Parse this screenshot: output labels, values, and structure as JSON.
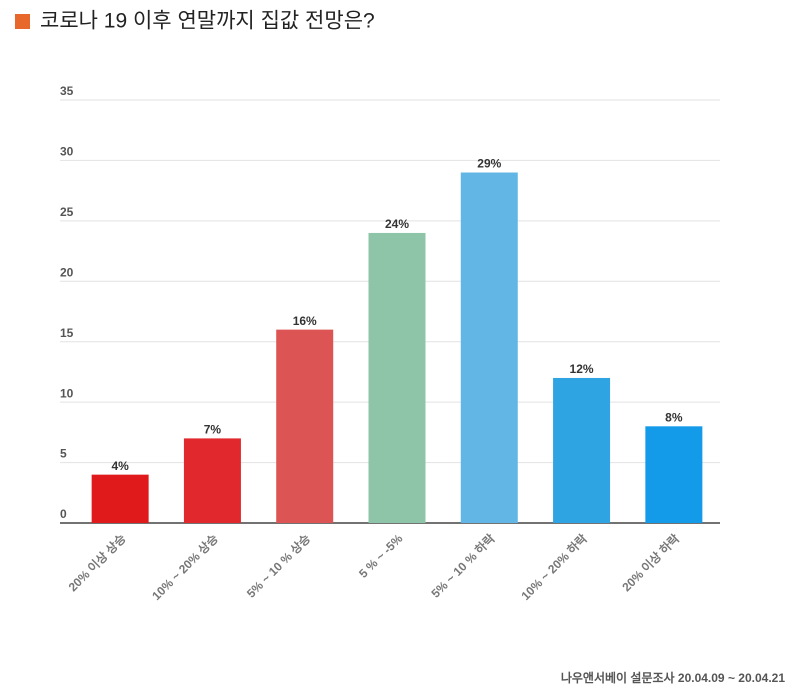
{
  "chart_data": {
    "type": "bar",
    "title": "코로나 19 이후 연말까지 집값 전망은?",
    "categories": [
      "20% 이상 상승",
      "10% ~ 20% 상승",
      "5% ~ 10 % 상승",
      "5 % ~ -5%",
      "5% ~ 10 % 하락",
      "10% ~ 20% 하락",
      "20% 이상 하락"
    ],
    "values": [
      4,
      7,
      16,
      24,
      29,
      12,
      8
    ],
    "value_labels": [
      "4%",
      "7%",
      "16%",
      "24%",
      "29%",
      "12%",
      "8%"
    ],
    "colors": [
      "#e01a1a",
      "#e0282d",
      "#dc5454",
      "#8ec4a8",
      "#62b6e6",
      "#2ea4e2",
      "#139ae8"
    ],
    "ylim": [
      0,
      35
    ],
    "yticks": [
      0,
      5,
      10,
      15,
      20,
      25,
      30,
      35
    ],
    "grid": true,
    "source": "나우앤서베이 설문조사 20.04.09 ~ 20.04.21"
  }
}
